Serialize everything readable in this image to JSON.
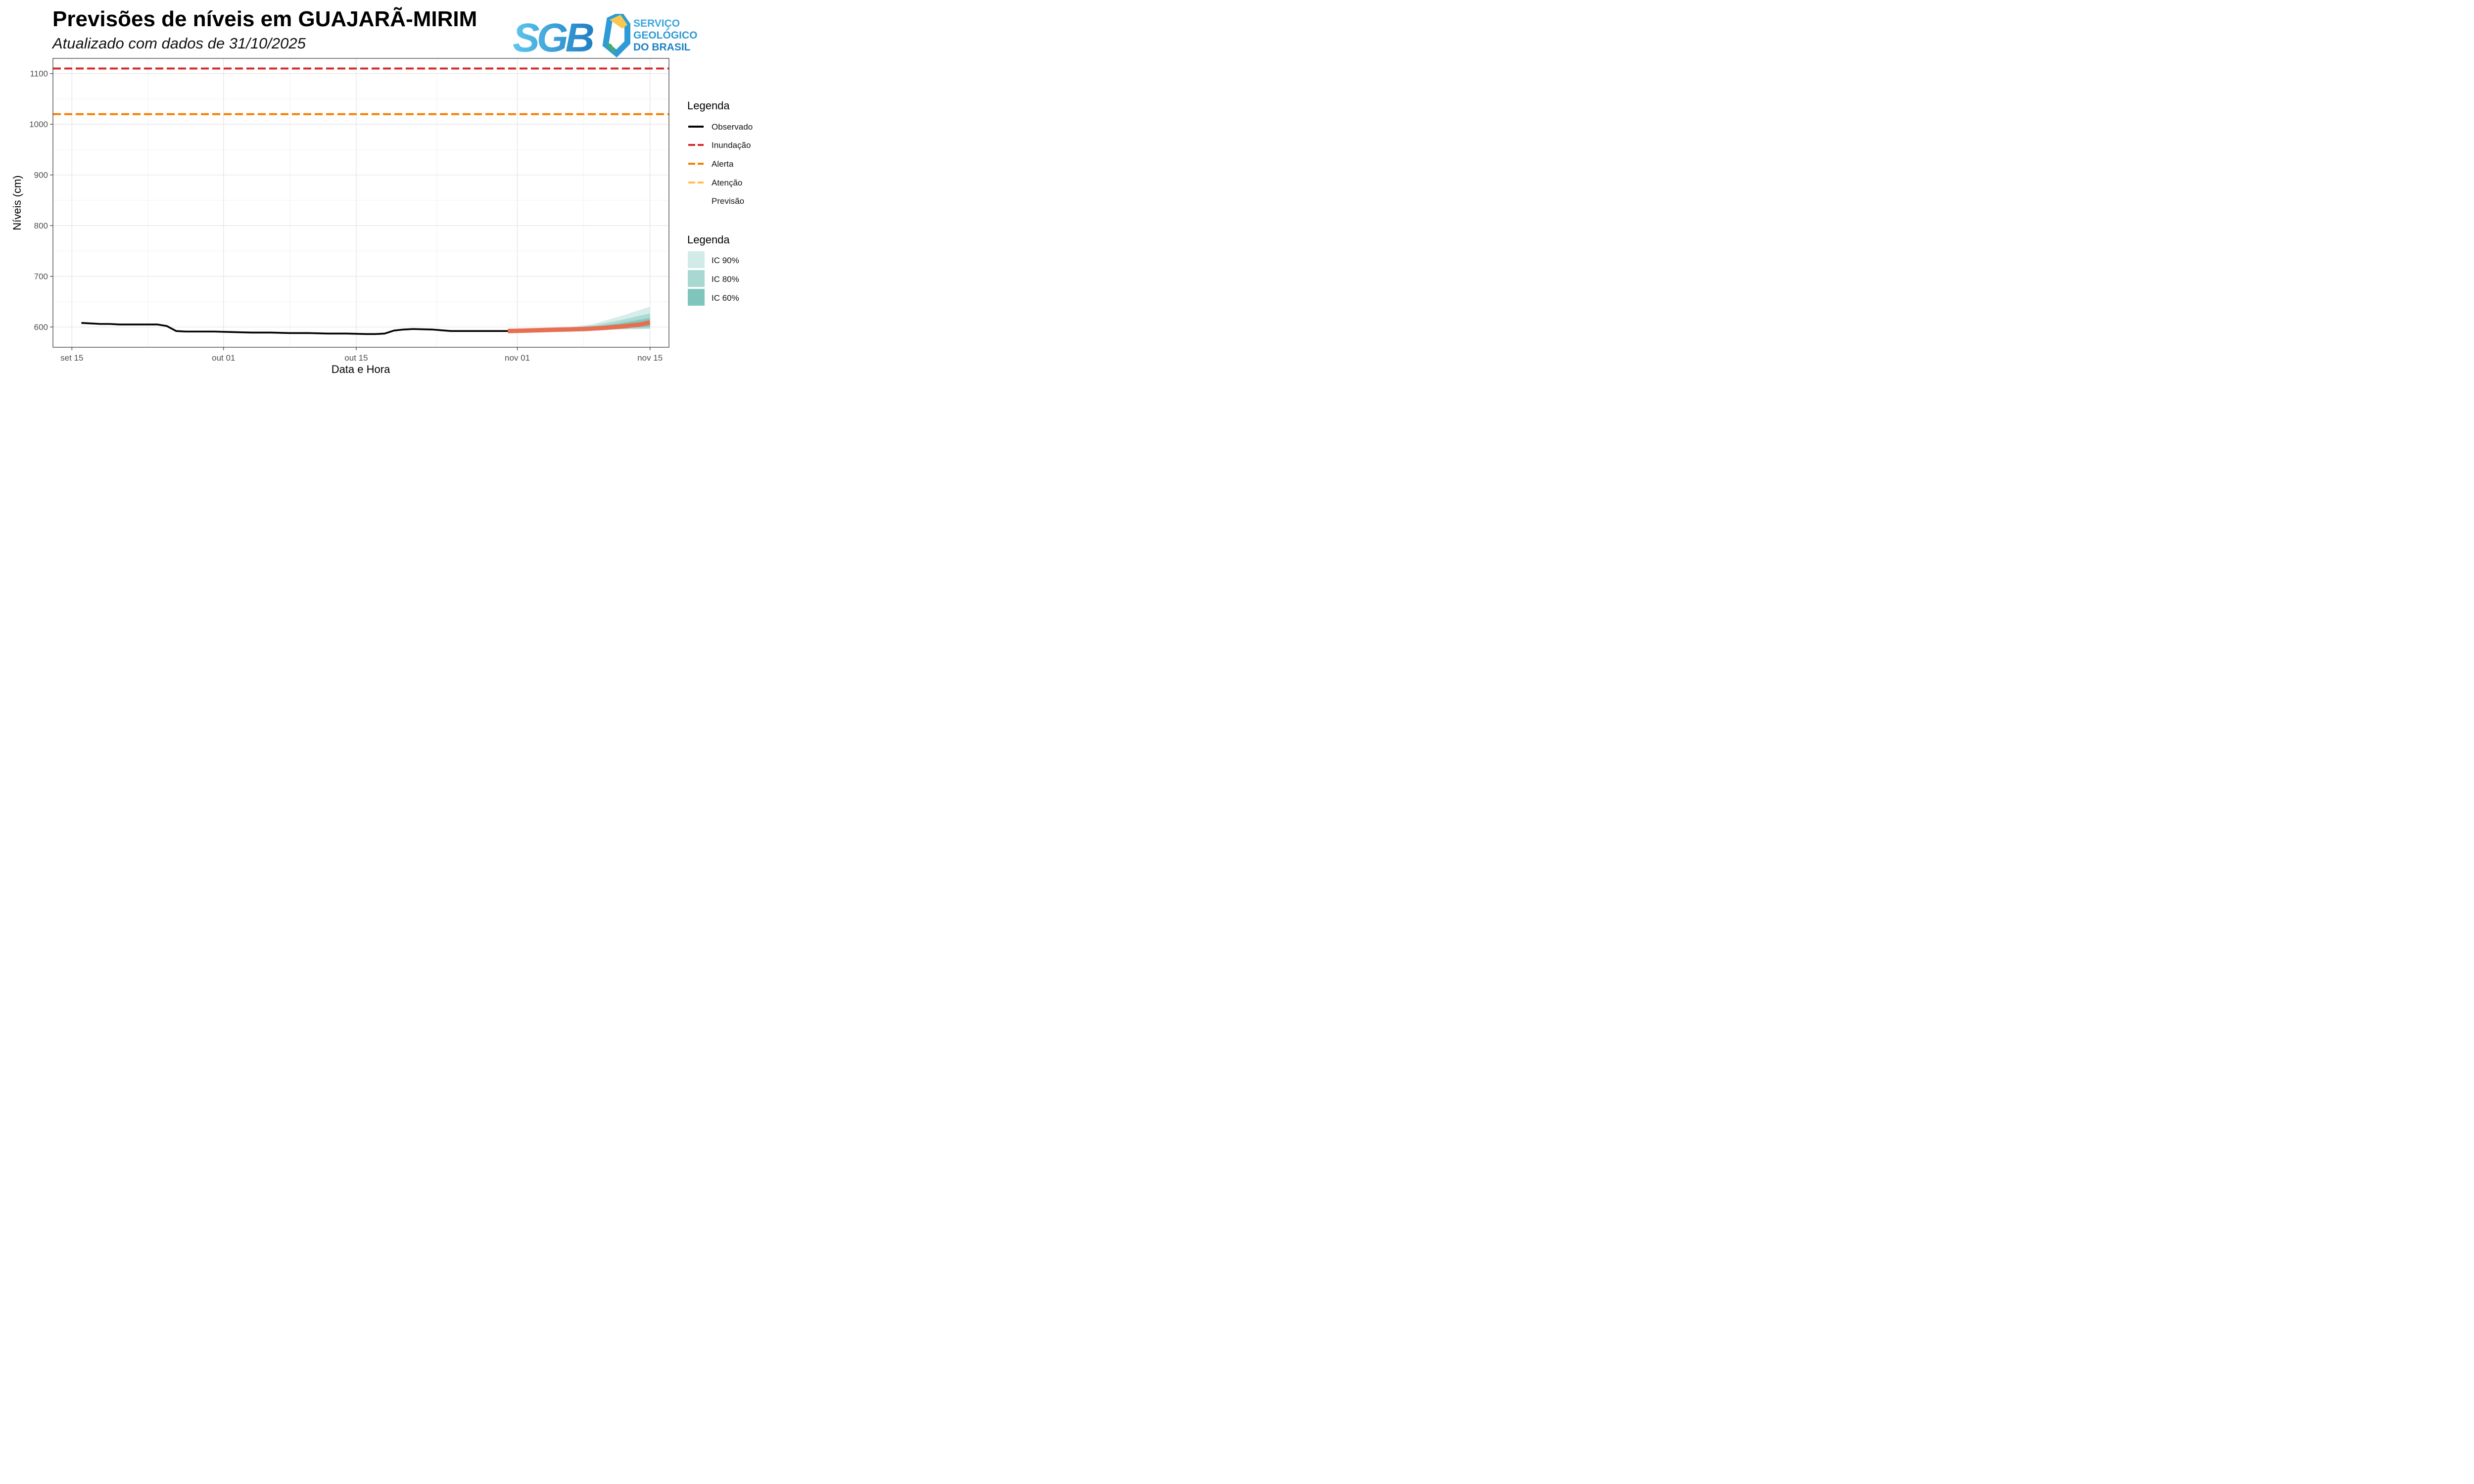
{
  "header": {
    "title": "Previsões de níveis em GUAJARÃ-MIRIM",
    "subtitle": "Atualizado com dados de 31/10/2025"
  },
  "logo": {
    "mark": "SGB",
    "line1": "SERVIÇO",
    "line2": "GEOLÓGICO",
    "line3": "DO BRASIL"
  },
  "colors": {
    "observed": "#000000",
    "inundacao": "#d62828",
    "alerta": "#f77f00",
    "atencao": "#fcbf49",
    "forecast": "#e76f51",
    "ic90": "#d3ebe8",
    "ic80": "#a8d8d1",
    "ic60": "#7fc5bb",
    "logo_blue": "#2e9bd6",
    "logo_green": "#3fae6a",
    "logo_yellow": "#f9c74f"
  },
  "chart_data": {
    "type": "line",
    "title": "Previsões de níveis em GUAJARÃ-MIRIM",
    "subtitle": "Atualizado com dados de 31/10/2025",
    "xlabel": "Data e Hora",
    "ylabel": "Níveis (cm)",
    "xlim": [
      "2025-09-13",
      "2025-11-17"
    ],
    "ylim": [
      560,
      1130
    ],
    "x_ticks": [
      "2025-09-15",
      "2025-10-01",
      "2025-10-15",
      "2025-11-01",
      "2025-11-15"
    ],
    "x_tick_labels": [
      "set 15",
      "out 01",
      "out 15",
      "nov 01",
      "nov 15"
    ],
    "y_ticks": [
      600,
      700,
      800,
      900,
      1000,
      1100
    ],
    "y_tick_labels": [
      "600",
      "700",
      "800",
      "900",
      "1000",
      "1100"
    ],
    "grid": true,
    "thresholds": [
      {
        "name": "Inundação",
        "value": 1110
      },
      {
        "name": "Alerta",
        "value": 1020
      }
    ],
    "series": [
      {
        "name": "Observado",
        "x": [
          "2025-09-16",
          "2025-09-17",
          "2025-09-18",
          "2025-09-19",
          "2025-09-20",
          "2025-09-21",
          "2025-09-22",
          "2025-09-23",
          "2025-09-24",
          "2025-09-25",
          "2025-09-26",
          "2025-09-27",
          "2025-09-28",
          "2025-09-30",
          "2025-10-02",
          "2025-10-04",
          "2025-10-06",
          "2025-10-08",
          "2025-10-10",
          "2025-10-12",
          "2025-10-14",
          "2025-10-16",
          "2025-10-17",
          "2025-10-18",
          "2025-10-19",
          "2025-10-20",
          "2025-10-21",
          "2025-10-23",
          "2025-10-25",
          "2025-10-27",
          "2025-10-29",
          "2025-10-31"
        ],
        "y": [
          608,
          607,
          606,
          606,
          605,
          605,
          605,
          605,
          605,
          602,
          592,
          591,
          591,
          591,
          590,
          589,
          589,
          588,
          588,
          587,
          587,
          586,
          586,
          587,
          593,
          595,
          596,
          595,
          592,
          592,
          592,
          592
        ]
      },
      {
        "name": "Previsão",
        "x": [
          "2025-10-31",
          "2025-11-02",
          "2025-11-04",
          "2025-11-06",
          "2025-11-08",
          "2025-11-10",
          "2025-11-12",
          "2025-11-14",
          "2025-11-15"
        ],
        "y": [
          592,
          593,
          594,
          595,
          596,
          598,
          601,
          605,
          609
        ]
      }
    ],
    "intervals": [
      {
        "name": "IC 90%",
        "x": [
          "2025-10-31",
          "2025-11-03",
          "2025-11-06",
          "2025-11-09",
          "2025-11-12",
          "2025-11-15"
        ],
        "low": [
          591,
          592,
          592,
          593,
          595,
          596
        ],
        "high": [
          594,
          596,
          599,
          606,
          622,
          640
        ]
      },
      {
        "name": "IC 80%",
        "x": [
          "2025-10-31",
          "2025-11-03",
          "2025-11-06",
          "2025-11-09",
          "2025-11-12",
          "2025-11-15"
        ],
        "low": [
          591,
          592,
          593,
          594,
          596,
          597
        ],
        "high": [
          593,
          595,
          598,
          603,
          614,
          627
        ]
      },
      {
        "name": "IC 60%",
        "x": [
          "2025-10-31",
          "2025-11-03",
          "2025-11-06",
          "2025-11-09",
          "2025-11-12",
          "2025-11-15"
        ],
        "low": [
          592,
          593,
          594,
          595,
          598,
          600
        ],
        "high": [
          593,
          594,
          596,
          600,
          608,
          618
        ]
      }
    ],
    "legend": {
      "placement": "right",
      "lines": {
        "title": "Legenda",
        "items": [
          "Observado",
          "Inundação",
          "Alerta",
          "Atenção",
          "Previsão"
        ]
      },
      "bands": {
        "title": "Legenda",
        "items": [
          "IC 90%",
          "IC 80%",
          "IC 60%"
        ]
      }
    }
  }
}
